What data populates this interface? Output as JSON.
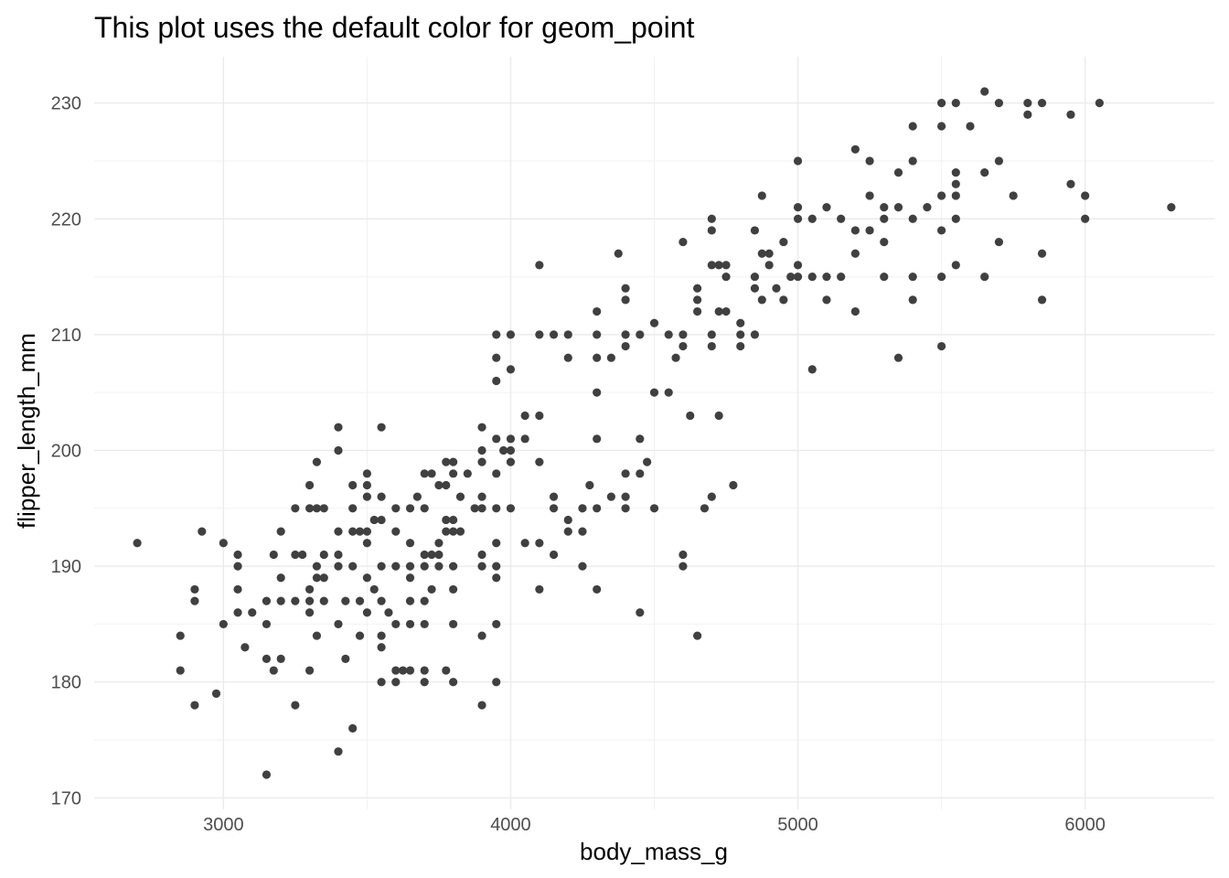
{
  "chart_data": {
    "type": "scatter",
    "title": "This plot uses the default color for geom_point",
    "xlabel": "body_mass_g",
    "ylabel": "flipper_length_mm",
    "xlim": [
      2550,
      6450
    ],
    "ylim": [
      169,
      234
    ],
    "x_ticks": [
      3000,
      4000,
      5000,
      6000
    ],
    "y_ticks": [
      170,
      180,
      190,
      200,
      210,
      220,
      230
    ],
    "x_minor_ticks": [
      2500,
      3500,
      4500,
      5500
    ],
    "y_minor_ticks": [
      175,
      185,
      195,
      205,
      215,
      225
    ],
    "x_tick_labels": [
      "3000",
      "4000",
      "5000",
      "6000"
    ],
    "y_tick_labels": [
      "170",
      "180",
      "190",
      "200",
      "210",
      "220",
      "230"
    ],
    "grid": true,
    "legend": "none",
    "point_color": "#404040",
    "points": [
      [
        2700,
        192
      ],
      [
        2850,
        184
      ],
      [
        2850,
        181
      ],
      [
        2900,
        187
      ],
      [
        2900,
        188
      ],
      [
        2900,
        178
      ],
      [
        2925,
        193
      ],
      [
        2975,
        179
      ],
      [
        3000,
        185
      ],
      [
        3000,
        192
      ],
      [
        3050,
        191
      ],
      [
        3050,
        190
      ],
      [
        3050,
        188
      ],
      [
        3050,
        186
      ],
      [
        3075,
        183
      ],
      [
        3100,
        186
      ],
      [
        3150,
        187
      ],
      [
        3150,
        185
      ],
      [
        3150,
        182
      ],
      [
        3150,
        172
      ],
      [
        3175,
        191
      ],
      [
        3175,
        181
      ],
      [
        3200,
        193
      ],
      [
        3200,
        189
      ],
      [
        3200,
        187
      ],
      [
        3200,
        182
      ],
      [
        3250,
        195
      ],
      [
        3250,
        191
      ],
      [
        3250,
        187
      ],
      [
        3250,
        178
      ],
      [
        3275,
        191
      ],
      [
        3300,
        197
      ],
      [
        3300,
        195
      ],
      [
        3300,
        188
      ],
      [
        3300,
        187
      ],
      [
        3300,
        186
      ],
      [
        3300,
        181
      ],
      [
        3325,
        195
      ],
      [
        3325,
        199
      ],
      [
        3325,
        190
      ],
      [
        3325,
        189
      ],
      [
        3325,
        184
      ],
      [
        3350,
        195
      ],
      [
        3350,
        191
      ],
      [
        3350,
        189
      ],
      [
        3350,
        187
      ],
      [
        3400,
        202
      ],
      [
        3400,
        200
      ],
      [
        3400,
        193
      ],
      [
        3400,
        191
      ],
      [
        3400,
        190
      ],
      [
        3400,
        185
      ],
      [
        3400,
        174
      ],
      [
        3425,
        187
      ],
      [
        3425,
        182
      ],
      [
        3450,
        197
      ],
      [
        3450,
        195
      ],
      [
        3450,
        193
      ],
      [
        3450,
        190
      ],
      [
        3450,
        176
      ],
      [
        3475,
        193
      ],
      [
        3475,
        187
      ],
      [
        3475,
        184
      ],
      [
        3500,
        198
      ],
      [
        3500,
        197
      ],
      [
        3500,
        196
      ],
      [
        3500,
        193
      ],
      [
        3500,
        192
      ],
      [
        3500,
        189
      ],
      [
        3500,
        186
      ],
      [
        3525,
        188
      ],
      [
        3525,
        194
      ],
      [
        3550,
        202
      ],
      [
        3550,
        196
      ],
      [
        3550,
        194
      ],
      [
        3550,
        190
      ],
      [
        3550,
        187
      ],
      [
        3550,
        184
      ],
      [
        3550,
        183
      ],
      [
        3550,
        180
      ],
      [
        3575,
        186
      ],
      [
        3600,
        195
      ],
      [
        3600,
        193
      ],
      [
        3600,
        190
      ],
      [
        3600,
        185
      ],
      [
        3600,
        180
      ],
      [
        3600,
        181
      ],
      [
        3625,
        181
      ],
      [
        3650,
        195
      ],
      [
        3650,
        192
      ],
      [
        3650,
        190
      ],
      [
        3650,
        189
      ],
      [
        3650,
        187
      ],
      [
        3650,
        185
      ],
      [
        3650,
        181
      ],
      [
        3675,
        196
      ],
      [
        3700,
        198
      ],
      [
        3700,
        195
      ],
      [
        3700,
        191
      ],
      [
        3700,
        190
      ],
      [
        3700,
        187
      ],
      [
        3700,
        185
      ],
      [
        3700,
        181
      ],
      [
        3700,
        180
      ],
      [
        3725,
        198
      ],
      [
        3725,
        191
      ],
      [
        3725,
        188
      ],
      [
        3750,
        197
      ],
      [
        3750,
        192
      ],
      [
        3750,
        191
      ],
      [
        3750,
        190
      ],
      [
        3775,
        199
      ],
      [
        3775,
        197
      ],
      [
        3775,
        194
      ],
      [
        3775,
        193
      ],
      [
        3775,
        181
      ],
      [
        3800,
        199
      ],
      [
        3800,
        198
      ],
      [
        3800,
        194
      ],
      [
        3800,
        193
      ],
      [
        3800,
        190
      ],
      [
        3800,
        188
      ],
      [
        3800,
        185
      ],
      [
        3800,
        180
      ],
      [
        3825,
        196
      ],
      [
        3825,
        193
      ],
      [
        3850,
        198
      ],
      [
        3875,
        195
      ],
      [
        3900,
        202
      ],
      [
        3900,
        200
      ],
      [
        3900,
        199
      ],
      [
        3900,
        196
      ],
      [
        3900,
        195
      ],
      [
        3900,
        190
      ],
      [
        3900,
        191
      ],
      [
        3900,
        184
      ],
      [
        3900,
        178
      ],
      [
        3950,
        210
      ],
      [
        3950,
        208
      ],
      [
        3950,
        206
      ],
      [
        3950,
        201
      ],
      [
        3950,
        198
      ],
      [
        3950,
        195
      ],
      [
        3950,
        192
      ],
      [
        3950,
        190
      ],
      [
        3950,
        189
      ],
      [
        3950,
        185
      ],
      [
        3950,
        180
      ],
      [
        3975,
        200
      ],
      [
        4000,
        210
      ],
      [
        4000,
        207
      ],
      [
        4000,
        201
      ],
      [
        4000,
        200
      ],
      [
        4000,
        199
      ],
      [
        4000,
        195
      ],
      [
        4050,
        203
      ],
      [
        4050,
        201
      ],
      [
        4050,
        192
      ],
      [
        4100,
        216
      ],
      [
        4100,
        210
      ],
      [
        4100,
        203
      ],
      [
        4100,
        199
      ],
      [
        4100,
        192
      ],
      [
        4100,
        188
      ],
      [
        4150,
        210
      ],
      [
        4150,
        196
      ],
      [
        4150,
        195
      ],
      [
        4150,
        191
      ],
      [
        4200,
        210
      ],
      [
        4200,
        208
      ],
      [
        4200,
        194
      ],
      [
        4200,
        193
      ],
      [
        4250,
        195
      ],
      [
        4250,
        193
      ],
      [
        4250,
        190
      ],
      [
        4275,
        197
      ],
      [
        4300,
        212
      ],
      [
        4300,
        210
      ],
      [
        4300,
        208
      ],
      [
        4300,
        205
      ],
      [
        4300,
        201
      ],
      [
        4300,
        195
      ],
      [
        4300,
        188
      ],
      [
        4350,
        208
      ],
      [
        4350,
        196
      ],
      [
        4375,
        217
      ],
      [
        4400,
        214
      ],
      [
        4400,
        213
      ],
      [
        4400,
        210
      ],
      [
        4400,
        209
      ],
      [
        4400,
        198
      ],
      [
        4400,
        196
      ],
      [
        4400,
        195
      ],
      [
        4450,
        210
      ],
      [
        4450,
        201
      ],
      [
        4450,
        198
      ],
      [
        4450,
        186
      ],
      [
        4475,
        199
      ],
      [
        4500,
        211
      ],
      [
        4500,
        205
      ],
      [
        4500,
        195
      ],
      [
        4550,
        210
      ],
      [
        4550,
        205
      ],
      [
        4575,
        208
      ],
      [
        4600,
        218
      ],
      [
        4600,
        210
      ],
      [
        4600,
        209
      ],
      [
        4600,
        191
      ],
      [
        4600,
        190
      ],
      [
        4625,
        203
      ],
      [
        4650,
        214
      ],
      [
        4650,
        213
      ],
      [
        4650,
        212
      ],
      [
        4650,
        184
      ],
      [
        4675,
        195
      ],
      [
        4700,
        220
      ],
      [
        4700,
        219
      ],
      [
        4700,
        216
      ],
      [
        4700,
        210
      ],
      [
        4700,
        209
      ],
      [
        4700,
        196
      ],
      [
        4725,
        216
      ],
      [
        4725,
        212
      ],
      [
        4725,
        203
      ],
      [
        4750,
        216
      ],
      [
        4750,
        215
      ],
      [
        4750,
        212
      ],
      [
        4775,
        197
      ],
      [
        4800,
        211
      ],
      [
        4800,
        210
      ],
      [
        4800,
        209
      ],
      [
        4850,
        219
      ],
      [
        4850,
        215
      ],
      [
        4850,
        214
      ],
      [
        4850,
        210
      ],
      [
        4875,
        222
      ],
      [
        4875,
        217
      ],
      [
        4875,
        213
      ],
      [
        4900,
        217
      ],
      [
        4900,
        216
      ],
      [
        4925,
        214
      ],
      [
        4950,
        218
      ],
      [
        4950,
        213
      ],
      [
        4975,
        215
      ],
      [
        5000,
        225
      ],
      [
        5000,
        221
      ],
      [
        5000,
        220
      ],
      [
        5000,
        216
      ],
      [
        5000,
        215
      ],
      [
        5050,
        220
      ],
      [
        5050,
        215
      ],
      [
        5050,
        207
      ],
      [
        5100,
        221
      ],
      [
        5100,
        215
      ],
      [
        5100,
        213
      ],
      [
        5150,
        220
      ],
      [
        5150,
        215
      ],
      [
        5200,
        226
      ],
      [
        5200,
        219
      ],
      [
        5200,
        217
      ],
      [
        5200,
        212
      ],
      [
        5250,
        225
      ],
      [
        5250,
        222
      ],
      [
        5250,
        219
      ],
      [
        5300,
        221
      ],
      [
        5300,
        220
      ],
      [
        5300,
        218
      ],
      [
        5300,
        215
      ],
      [
        5350,
        224
      ],
      [
        5350,
        221
      ],
      [
        5350,
        208
      ],
      [
        5400,
        228
      ],
      [
        5400,
        225
      ],
      [
        5400,
        220
      ],
      [
        5400,
        215
      ],
      [
        5400,
        213
      ],
      [
        5450,
        221
      ],
      [
        5500,
        230
      ],
      [
        5500,
        228
      ],
      [
        5500,
        222
      ],
      [
        5500,
        219
      ],
      [
        5500,
        215
      ],
      [
        5500,
        209
      ],
      [
        5550,
        230
      ],
      [
        5550,
        224
      ],
      [
        5550,
        223
      ],
      [
        5550,
        222
      ],
      [
        5550,
        220
      ],
      [
        5550,
        216
      ],
      [
        5600,
        228
      ],
      [
        5650,
        231
      ],
      [
        5650,
        224
      ],
      [
        5650,
        215
      ],
      [
        5700,
        230
      ],
      [
        5700,
        225
      ],
      [
        5700,
        218
      ],
      [
        5750,
        222
      ],
      [
        5800,
        230
      ],
      [
        5800,
        229
      ],
      [
        5850,
        230
      ],
      [
        5850,
        217
      ],
      [
        5850,
        213
      ],
      [
        5950,
        229
      ],
      [
        5950,
        223
      ],
      [
        6000,
        222
      ],
      [
        6000,
        220
      ],
      [
        6050,
        230
      ],
      [
        6300,
        221
      ]
    ]
  }
}
